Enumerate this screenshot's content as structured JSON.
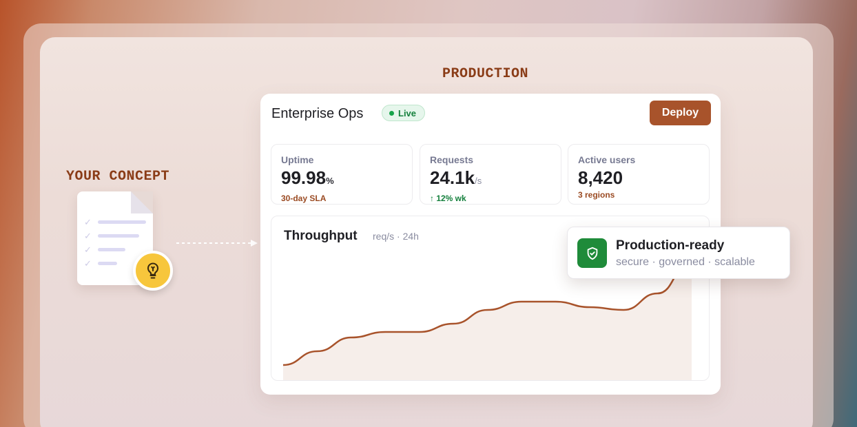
{
  "labels": {
    "production": "PRODUCTION",
    "concept": "YOUR CONCEPT"
  },
  "app": {
    "title": "Enterprise Ops",
    "status": "Live",
    "deploy_label": "Deploy"
  },
  "stats": [
    {
      "label": "Uptime",
      "value": "99.98",
      "unit": "%",
      "sub": "30-day SLA",
      "sub_color": "#9a4a22"
    },
    {
      "label": "Requests",
      "value": "24.1k",
      "unit": "/s",
      "sub": "↑ 12% wk",
      "sub_color": "#15803d"
    },
    {
      "label": "Active users",
      "value": "8,420",
      "unit": "",
      "sub": "3 regions",
      "sub_color": "#9a4a22"
    }
  ],
  "chart": {
    "title": "Throughput",
    "subtitle": "req/s · 24h"
  },
  "chart_data": {
    "type": "area",
    "title": "Throughput",
    "subtitle": "req/s · 24h",
    "x": [
      0,
      1,
      2,
      3,
      4,
      5,
      6,
      7,
      8,
      9,
      10,
      11,
      12
    ],
    "values": [
      0.12,
      0.22,
      0.32,
      0.36,
      0.36,
      0.42,
      0.52,
      0.58,
      0.58,
      0.54,
      0.52,
      0.64,
      0.88
    ],
    "ylim": [
      0,
      1
    ],
    "grid": false,
    "line_color": "#a8532b",
    "fill_color": "#f6eeea"
  },
  "badge": {
    "title": "Production-ready",
    "subtitle": "secure · governed · scalable"
  },
  "icons": {
    "document": "document-icon",
    "bulb": "lightbulb-icon",
    "shield": "shield-check-icon",
    "arrow": "dashed-arrow-icon"
  },
  "colors": {
    "accent": "#a8532b",
    "success": "#1f8b3a",
    "bulb": "#f7c63c"
  }
}
